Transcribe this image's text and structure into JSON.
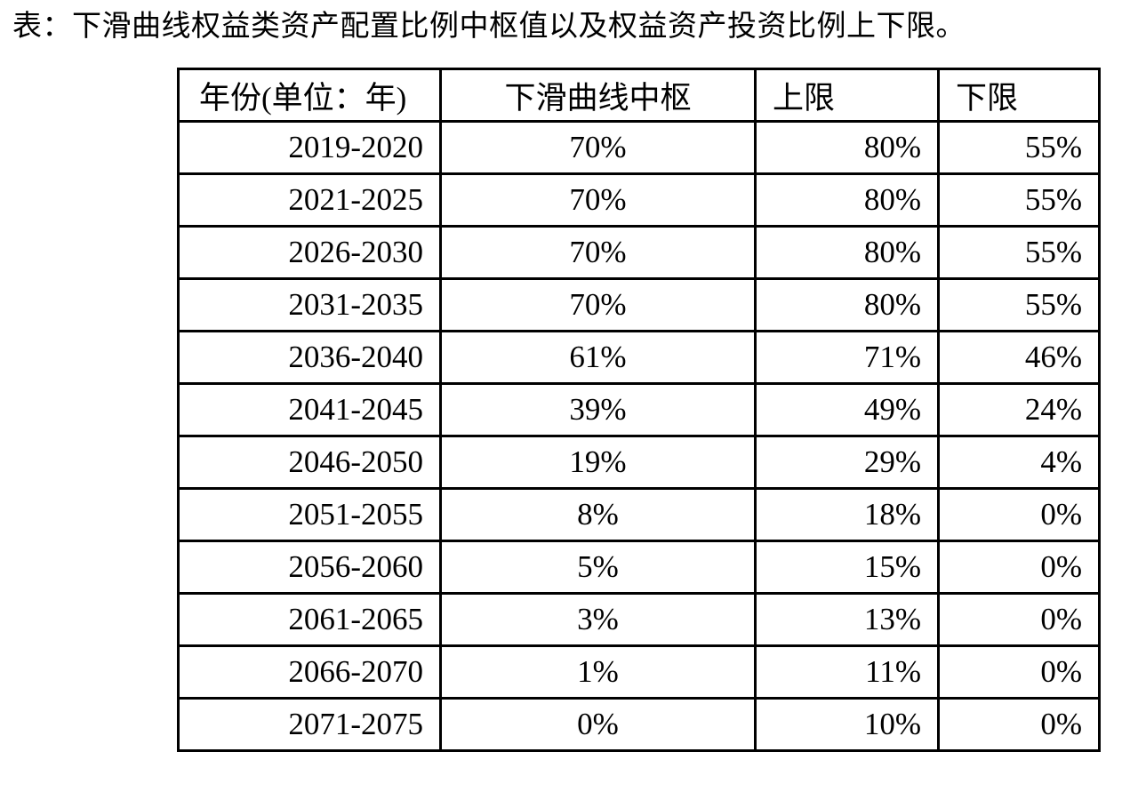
{
  "caption": "表：下滑曲线权益类资产配置比例中枢值以及权益资产投资比例上下限。",
  "table": {
    "headers": [
      "年份(单位：年)",
      "下滑曲线中枢",
      "上限",
      "下限"
    ],
    "rows": [
      [
        "2019-2020",
        "70%",
        "80%",
        "55%"
      ],
      [
        "2021-2025",
        "70%",
        "80%",
        "55%"
      ],
      [
        "2026-2030",
        "70%",
        "80%",
        "55%"
      ],
      [
        "2031-2035",
        "70%",
        "80%",
        "55%"
      ],
      [
        "2036-2040",
        "61%",
        "71%",
        "46%"
      ],
      [
        "2041-2045",
        "39%",
        "49%",
        "24%"
      ],
      [
        "2046-2050",
        "19%",
        "29%",
        "4%"
      ],
      [
        "2051-2055",
        "8%",
        "18%",
        "0%"
      ],
      [
        "2056-2060",
        "5%",
        "15%",
        "0%"
      ],
      [
        "2061-2065",
        "3%",
        "13%",
        "0%"
      ],
      [
        "2066-2070",
        "1%",
        "11%",
        "0%"
      ],
      [
        "2071-2075",
        "0%",
        "10%",
        "0%"
      ]
    ]
  }
}
